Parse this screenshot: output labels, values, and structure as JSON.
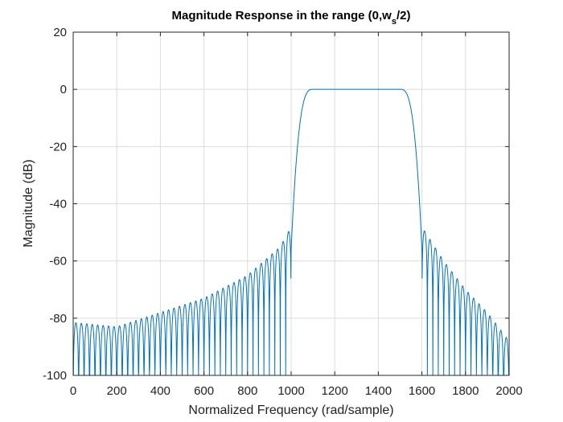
{
  "chart_data": {
    "type": "line",
    "title": "Magnitude Response in the range (0,w",
    "title_sub": "s",
    "title_end": "/2)",
    "xlabel": "Normalized Frequency (rad/sample)",
    "ylabel": "Magnitude (dB)",
    "xlim": [
      0,
      2000
    ],
    "ylim": [
      -100,
      20
    ],
    "xticks": [
      0,
      200,
      400,
      600,
      800,
      1000,
      1200,
      1400,
      1600,
      1800,
      2000
    ],
    "yticks": [
      -100,
      -80,
      -60,
      -40,
      -20,
      0,
      20
    ],
    "grid": true,
    "line_color": "#0072bd",
    "series": [
      {
        "passband": [
          1100,
          1500
        ],
        "passband_gain_db": 0,
        "transition_edges": [
          1000,
          1600
        ],
        "sidelobe_peaks_left": [
          [
            0,
            -81.5
          ],
          [
            200,
            -83
          ],
          [
            400,
            -78
          ],
          [
            600,
            -73
          ],
          [
            800,
            -65
          ],
          [
            950,
            -55
          ],
          [
            1000,
            -48
          ]
        ],
        "sidelobe_peaks_right": [
          [
            1600,
            -48
          ],
          [
            1700,
            -60
          ],
          [
            1800,
            -70
          ],
          [
            1900,
            -78
          ],
          [
            2000,
            -88
          ]
        ],
        "stopband_floor_db": -100
      }
    ]
  }
}
